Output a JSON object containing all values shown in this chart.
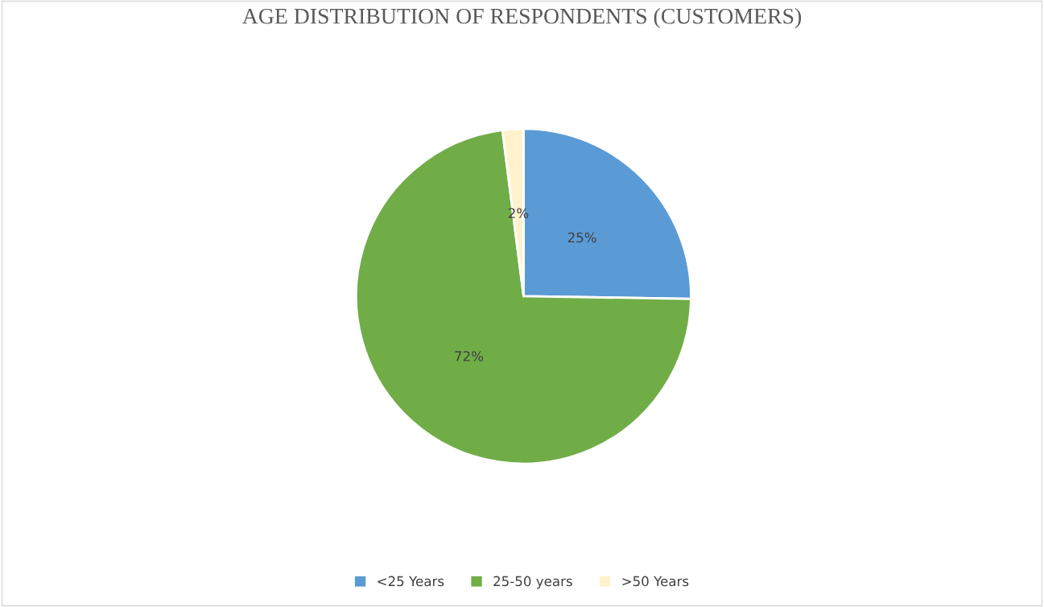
{
  "chart_data": {
    "type": "pie",
    "title": "AGE DISTRIBUTION OF RESPONDENTS (CUSTOMERS)",
    "categories": [
      "<25 Years",
      "25-50 years",
      ">50 Years"
    ],
    "values": [
      25,
      72,
      2
    ],
    "colors": [
      "#5b9bd5",
      "#70ad47",
      "#fff2cc"
    ],
    "value_labels": [
      "25%",
      "72%",
      "2%"
    ],
    "legend": "bottom"
  }
}
